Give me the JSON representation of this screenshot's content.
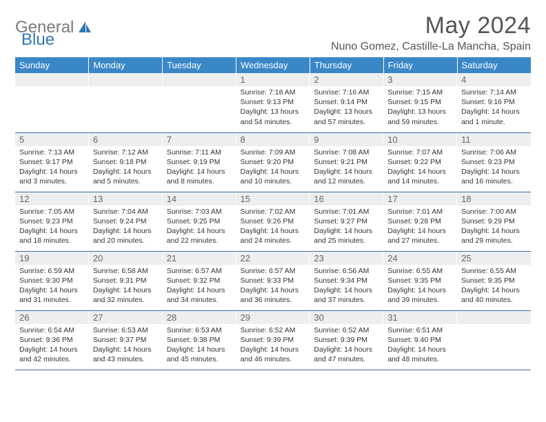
{
  "brand": {
    "gray": "General",
    "blue": "Blue"
  },
  "title": "May 2024",
  "location": "Nuno Gomez, Castille-La Mancha, Spain",
  "colors": {
    "header_bg": "#3a87c8",
    "header_text": "#ffffff",
    "daynum_bg": "#eceeef",
    "border": "#3a6fa5",
    "logo_gray": "#7a7a7a",
    "logo_blue": "#2f77b8"
  },
  "weekdays": [
    "Sunday",
    "Monday",
    "Tuesday",
    "Wednesday",
    "Thursday",
    "Friday",
    "Saturday"
  ],
  "weeks": [
    [
      {
        "n": "",
        "sr": "",
        "ss": "",
        "dl": ""
      },
      {
        "n": "",
        "sr": "",
        "ss": "",
        "dl": ""
      },
      {
        "n": "",
        "sr": "",
        "ss": "",
        "dl": ""
      },
      {
        "n": "1",
        "sr": "7:18 AM",
        "ss": "9:13 PM",
        "dl": "13 hours and 54 minutes."
      },
      {
        "n": "2",
        "sr": "7:16 AM",
        "ss": "9:14 PM",
        "dl": "13 hours and 57 minutes."
      },
      {
        "n": "3",
        "sr": "7:15 AM",
        "ss": "9:15 PM",
        "dl": "13 hours and 59 minutes."
      },
      {
        "n": "4",
        "sr": "7:14 AM",
        "ss": "9:16 PM",
        "dl": "14 hours and 1 minute."
      }
    ],
    [
      {
        "n": "5",
        "sr": "7:13 AM",
        "ss": "9:17 PM",
        "dl": "14 hours and 3 minutes."
      },
      {
        "n": "6",
        "sr": "7:12 AM",
        "ss": "9:18 PM",
        "dl": "14 hours and 5 minutes."
      },
      {
        "n": "7",
        "sr": "7:11 AM",
        "ss": "9:19 PM",
        "dl": "14 hours and 8 minutes."
      },
      {
        "n": "8",
        "sr": "7:09 AM",
        "ss": "9:20 PM",
        "dl": "14 hours and 10 minutes."
      },
      {
        "n": "9",
        "sr": "7:08 AM",
        "ss": "9:21 PM",
        "dl": "14 hours and 12 minutes."
      },
      {
        "n": "10",
        "sr": "7:07 AM",
        "ss": "9:22 PM",
        "dl": "14 hours and 14 minutes."
      },
      {
        "n": "11",
        "sr": "7:06 AM",
        "ss": "9:23 PM",
        "dl": "14 hours and 16 minutes."
      }
    ],
    [
      {
        "n": "12",
        "sr": "7:05 AM",
        "ss": "9:23 PM",
        "dl": "14 hours and 18 minutes."
      },
      {
        "n": "13",
        "sr": "7:04 AM",
        "ss": "9:24 PM",
        "dl": "14 hours and 20 minutes."
      },
      {
        "n": "14",
        "sr": "7:03 AM",
        "ss": "9:25 PM",
        "dl": "14 hours and 22 minutes."
      },
      {
        "n": "15",
        "sr": "7:02 AM",
        "ss": "9:26 PM",
        "dl": "14 hours and 24 minutes."
      },
      {
        "n": "16",
        "sr": "7:01 AM",
        "ss": "9:27 PM",
        "dl": "14 hours and 25 minutes."
      },
      {
        "n": "17",
        "sr": "7:01 AM",
        "ss": "9:28 PM",
        "dl": "14 hours and 27 minutes."
      },
      {
        "n": "18",
        "sr": "7:00 AM",
        "ss": "9:29 PM",
        "dl": "14 hours and 29 minutes."
      }
    ],
    [
      {
        "n": "19",
        "sr": "6:59 AM",
        "ss": "9:30 PM",
        "dl": "14 hours and 31 minutes."
      },
      {
        "n": "20",
        "sr": "6:58 AM",
        "ss": "9:31 PM",
        "dl": "14 hours and 32 minutes."
      },
      {
        "n": "21",
        "sr": "6:57 AM",
        "ss": "9:32 PM",
        "dl": "14 hours and 34 minutes."
      },
      {
        "n": "22",
        "sr": "6:57 AM",
        "ss": "9:33 PM",
        "dl": "14 hours and 36 minutes."
      },
      {
        "n": "23",
        "sr": "6:56 AM",
        "ss": "9:34 PM",
        "dl": "14 hours and 37 minutes."
      },
      {
        "n": "24",
        "sr": "6:55 AM",
        "ss": "9:35 PM",
        "dl": "14 hours and 39 minutes."
      },
      {
        "n": "25",
        "sr": "6:55 AM",
        "ss": "9:35 PM",
        "dl": "14 hours and 40 minutes."
      }
    ],
    [
      {
        "n": "26",
        "sr": "6:54 AM",
        "ss": "9:36 PM",
        "dl": "14 hours and 42 minutes."
      },
      {
        "n": "27",
        "sr": "6:53 AM",
        "ss": "9:37 PM",
        "dl": "14 hours and 43 minutes."
      },
      {
        "n": "28",
        "sr": "6:53 AM",
        "ss": "9:38 PM",
        "dl": "14 hours and 45 minutes."
      },
      {
        "n": "29",
        "sr": "6:52 AM",
        "ss": "9:39 PM",
        "dl": "14 hours and 46 minutes."
      },
      {
        "n": "30",
        "sr": "6:52 AM",
        "ss": "9:39 PM",
        "dl": "14 hours and 47 minutes."
      },
      {
        "n": "31",
        "sr": "6:51 AM",
        "ss": "9:40 PM",
        "dl": "14 hours and 48 minutes."
      },
      {
        "n": "",
        "sr": "",
        "ss": "",
        "dl": ""
      }
    ]
  ],
  "labels": {
    "sunrise": "Sunrise:",
    "sunset": "Sunset:",
    "daylight": "Daylight:"
  }
}
